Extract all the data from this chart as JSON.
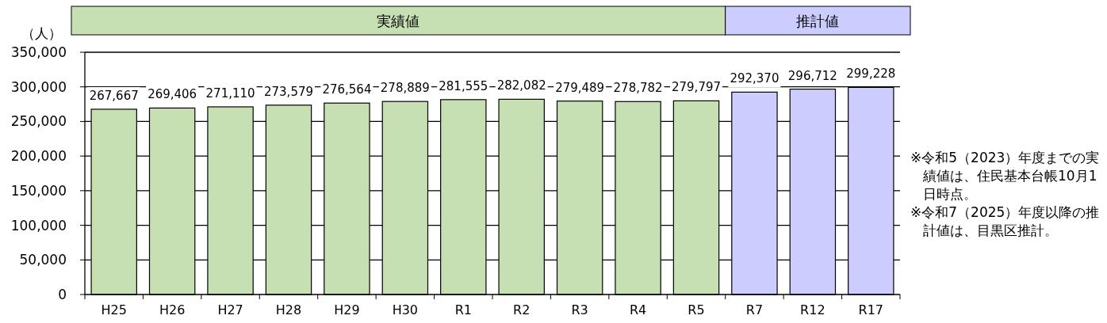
{
  "chart_data": {
    "type": "bar",
    "ylabel": "（人）",
    "categories": [
      "H25",
      "H26",
      "H27",
      "H28",
      "H29",
      "H30",
      "R1",
      "R2",
      "R3",
      "R4",
      "R5",
      "R7",
      "R12",
      "R17"
    ],
    "values": [
      267667,
      269406,
      271110,
      273579,
      276564,
      278889,
      281555,
      282082,
      279489,
      278782,
      279797,
      292370,
      296712,
      299228
    ],
    "value_labels": [
      "267,667",
      "269,406",
      "271,110",
      "273,579",
      "276,564",
      "278,889",
      "281,555",
      "282,082",
      "279,489",
      "278,782",
      "279,797",
      "292,370",
      "296,712",
      "299,228"
    ],
    "colors": [
      "#c6e0b4",
      "#c6e0b4",
      "#c6e0b4",
      "#c6e0b4",
      "#c6e0b4",
      "#c6e0b4",
      "#c6e0b4",
      "#c6e0b4",
      "#c6e0b4",
      "#c6e0b4",
      "#c6e0b4",
      "#ccccff",
      "#ccccff",
      "#ccccff"
    ],
    "ylim": [
      0,
      350000
    ],
    "yticks": [
      {
        "value": 0,
        "label": "0"
      },
      {
        "value": 50000,
        "label": "50,000"
      },
      {
        "value": 100000,
        "label": "100,000"
      },
      {
        "value": 150000,
        "label": "150,000"
      },
      {
        "value": 200000,
        "label": "200,000"
      },
      {
        "value": 250000,
        "label": "250,000"
      },
      {
        "value": 300000,
        "label": "300,000"
      },
      {
        "value": 350000,
        "label": "350,000"
      }
    ],
    "grid": "y",
    "annotations": [
      "実績値",
      "推計値",
      "※令和5（2023）年度までの実績値は、住民基本台帳10月1日時点。",
      "※令和7（2025）年度以降の推計値は、目黒区推計。"
    ]
  }
}
